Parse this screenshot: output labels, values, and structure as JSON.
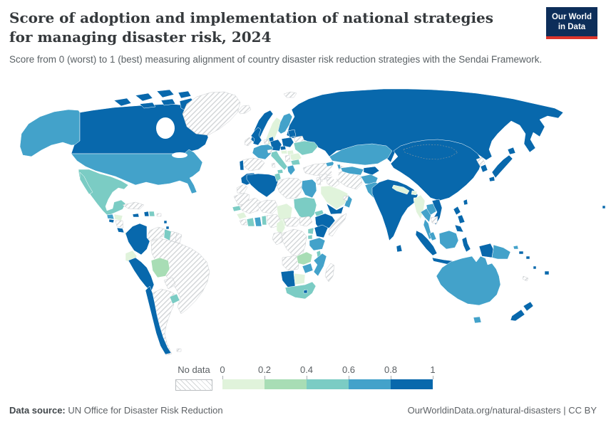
{
  "header": {
    "title": "Score of adoption and implementation of national strategies for managing disaster risk, 2024",
    "subtitle": "Score from 0 (worst) to 1 (best) measuring alignment of country disaster risk reduction strategies with the Sendai Framework.",
    "logo": {
      "line1": "Our World",
      "line2": "in Data",
      "bg": "#0d2e5a",
      "accent": "#dc352c"
    }
  },
  "legend": {
    "no_data_label": "No data",
    "ticks": [
      "0",
      "0.2",
      "0.4",
      "0.6",
      "0.8",
      "1"
    ],
    "colors": [
      "#e0f3db",
      "#a8ddb5",
      "#7bccc4",
      "#43a2ca",
      "#0868ac"
    ]
  },
  "footer": {
    "source_label": "Data source:",
    "source_text": "UN Office for Disaster Risk Reduction",
    "link_text": "OurWorldinData.org/natural-disasters | CC BY"
  },
  "chart_data": {
    "type": "choropleth",
    "map": "world",
    "title": "Score of adoption and implementation of national strategies for managing disaster risk, 2024",
    "year": "2024",
    "value_range": [
      0,
      1
    ],
    "bands": [
      "0-0.2",
      "0.2-0.4",
      "0.4-0.6",
      "0.6-0.8",
      "0.8-1"
    ],
    "no_data_label": "No data",
    "regions": {
      "canada": "0.8-1",
      "alaska": "0.6-0.8",
      "usa": "0.6-0.8",
      "greenland": "no-data",
      "mexico": "0.4-0.6",
      "guatemala": "0.6-0.8",
      "honduras": "0-0.2",
      "el-salvador": "0.8-1",
      "nicaragua": "no-data",
      "costa-rica": "0.8-1",
      "panama": "0-0.2",
      "cuba": "no-data",
      "jamaica": "0.8-1",
      "haiti": "0.8-1",
      "dominican-republic": "0.4-0.6",
      "puerto-rico": "no-data",
      "lesser-antilles": "0.8-1",
      "trinidad": "0.8-1",
      "venezuela": "no-data",
      "guyana": "0.4-0.6",
      "suriname": "no-data",
      "french-guiana": "no-data",
      "colombia": "0.8-1",
      "ecuador": "0-0.2",
      "peru": "0.8-1",
      "brazil": "no-data",
      "bolivia": "0.2-0.4",
      "paraguay": "no-data",
      "uruguay": "0.4-0.6",
      "argentina": "no-data",
      "chile": "0.8-1",
      "falkland-islands": "no-data",
      "iceland": "no-data",
      "svalbard": "no-data",
      "norway": "0.8-1",
      "sweden": "0-0.2",
      "finland": "0.6-0.8",
      "denmark": "0.8-1",
      "united-kingdom": "0.8-1",
      "ireland": "no-data",
      "netherlands": "no-data",
      "germany": "0.8-1",
      "poland": "0.8-1",
      "baltic-states": "0.8-1",
      "belarus": "no-data",
      "france": "0.6-0.8",
      "spain": "no-data",
      "portugal": "0.8-1",
      "italy": "0.4-0.6",
      "sardinia": "no-data",
      "switzerland": "no-data",
      "czechia": "0.8-1",
      "austria": "0-0.2",
      "hungary": "0-0.2",
      "romania": "0-0.2",
      "serbia": "no-data",
      "bulgaria": "0.4-0.6",
      "greece": "0.6-0.8",
      "ukraine": "0.4-0.6",
      "turkey": "no-data",
      "cyprus": "no-data",
      "georgia": "0.6-0.8",
      "azerbaijan": "0.6-0.8",
      "morocco": "0.8-1",
      "western-sahara": "no-data",
      "algeria": "0.8-1",
      "tunisia": "0.4-0.6",
      "libya": "no-data",
      "egypt": "0.6-0.8",
      "mauritania": "no-data",
      "mali": "no-data",
      "niger": "no-data",
      "chad": "0-0.2",
      "sudan": "0.4-0.6",
      "eritrea": "0.4-0.6",
      "ethiopia": "0.8-1",
      "somalia": "no-data",
      "senegal": "0.4-0.6",
      "guinea": "0-0.2",
      "sierra-leone-liberia": "no-data",
      "ivory-coast": "0.4-0.6",
      "ghana": "0.6-0.8",
      "togo-benin": "0.4-0.6",
      "nigeria": "no-data",
      "cameroon": "0-0.2",
      "central-african-republic": "no-data",
      "south-sudan": "no-data",
      "dr-congo": "no-data",
      "congo-gabon": "no-data",
      "uganda": "0.4-0.6",
      "kenya": "0.8-1",
      "rwanda-burundi": "0.4-0.6",
      "tanzania": "0.6-0.8",
      "malawi": "0.4-0.6",
      "angola": "no-data",
      "zambia": "0.2-0.4",
      "mozambique": "0.6-0.8",
      "zimbabwe": "0.6-0.8",
      "namibia": "0.8-1",
      "botswana": "0-0.2",
      "south-africa": "0.4-0.6",
      "lesotho": "0.8-1",
      "madagascar": "no-data",
      "syria": "no-data",
      "iraq": "no-data",
      "levant": "no-data",
      "saudi-arabia": "0-0.2",
      "yemen": "0.8-1",
      "oman": "0.6-0.8",
      "uae-qatar": "no-data",
      "iran": "no-data",
      "afghanistan": "0.6-0.8",
      "pakistan": "0.6-0.8",
      "turkmenistan-uzbekistan": "0.6-0.8",
      "kyrgyzstan-tajikistan": "0.8-1",
      "kazakhstan": "0.6-0.8",
      "india": "0.8-1",
      "nepal": "0-0.2",
      "bhutan": "0-0.2",
      "bangladesh": "no-data",
      "sri-lanka": "0.8-1",
      "myanmar": "0-0.2",
      "thailand": "0.6-0.8",
      "laos": "0.6-0.8",
      "vietnam": "0.8-1",
      "cambodia": "no-data",
      "malaysia": "0.6-0.8",
      "indonesia": "0.8-1",
      "borneo": "0.6-0.8",
      "timor": "no-data",
      "philippines": "0.8-1",
      "taiwan": "0.8-1",
      "china": "0.8-1",
      "mongolia": "0.8-1",
      "north-korea": "no-data",
      "south-korea": "0.8-1",
      "japan": "0.8-1",
      "russia": "0.8-1",
      "papua-new-guinea": "0.6-0.8",
      "solomon-islands": "0.8-1",
      "vanuatu": "0.8-1",
      "fiji": "0.8-1",
      "new-caledonia": "no-data",
      "australia": "0.6-0.8",
      "new-zealand": "0.8-1",
      "pacific-islands": "0.8-1"
    }
  }
}
